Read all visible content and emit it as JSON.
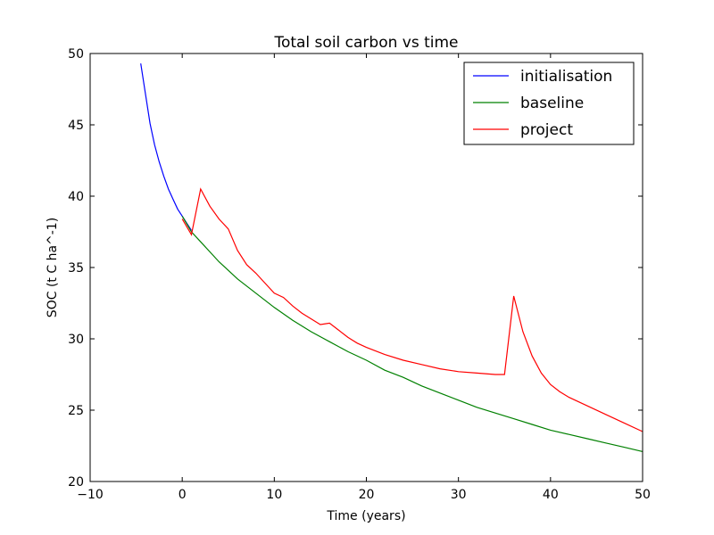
{
  "chart_data": {
    "type": "line",
    "title": "Total soil carbon vs time",
    "xlabel": "Time (years)",
    "ylabel": "SOC (t C ha^-1)",
    "xlim": [
      -10,
      50
    ],
    "ylim": [
      20,
      50
    ],
    "xticks": [
      -10,
      0,
      10,
      20,
      30,
      40,
      50
    ],
    "xtick_labels": [
      "−10",
      "0",
      "10",
      "20",
      "30",
      "40",
      "50"
    ],
    "yticks": [
      20,
      25,
      30,
      35,
      40,
      45,
      50
    ],
    "ytick_labels": [
      "20",
      "25",
      "30",
      "35",
      "40",
      "45",
      "50"
    ],
    "grid": false,
    "legend_position": "top-right",
    "series": [
      {
        "name": "initialisation",
        "color": "#0000ff",
        "x": [
          -4.5,
          -4,
          -3.5,
          -3,
          -2.5,
          -2,
          -1.5,
          -1,
          -0.5,
          0,
          0.5,
          1
        ],
        "y": [
          49.3,
          47.2,
          45.1,
          43.6,
          42.4,
          41.4,
          40.5,
          39.8,
          39.1,
          38.6,
          38.1,
          37.6
        ]
      },
      {
        "name": "baseline",
        "color": "#008000",
        "x": [
          0,
          1,
          2,
          3,
          4,
          5,
          6,
          7,
          8,
          9,
          10,
          12,
          14,
          16,
          18,
          20,
          22,
          24,
          26,
          28,
          30,
          32,
          34,
          36,
          38,
          40,
          42,
          44,
          46,
          48,
          50
        ],
        "y": [
          38.6,
          37.5,
          36.8,
          36.1,
          35.4,
          34.8,
          34.2,
          33.7,
          33.2,
          32.7,
          32.2,
          31.3,
          30.5,
          29.8,
          29.1,
          28.5,
          27.8,
          27.3,
          26.7,
          26.2,
          25.7,
          25.2,
          24.8,
          24.4,
          24.0,
          23.6,
          23.3,
          23.0,
          22.7,
          22.4,
          22.1
        ]
      },
      {
        "name": "project",
        "color": "#ff0000",
        "x": [
          0,
          1,
          2,
          3,
          4,
          5,
          6,
          7,
          8,
          9,
          10,
          11,
          12,
          13,
          14,
          15,
          16,
          17,
          18,
          19,
          20,
          22,
          24,
          26,
          28,
          30,
          32,
          34,
          35,
          36,
          37,
          38,
          39,
          40,
          41,
          42,
          44,
          46,
          48,
          50
        ],
        "y": [
          38.4,
          37.3,
          40.5,
          39.3,
          38.4,
          37.7,
          36.2,
          35.2,
          34.6,
          33.9,
          33.2,
          32.9,
          32.3,
          31.8,
          31.4,
          31.0,
          31.1,
          30.6,
          30.1,
          29.7,
          29.4,
          28.9,
          28.5,
          28.2,
          27.9,
          27.7,
          27.6,
          27.5,
          27.5,
          33.0,
          30.5,
          28.8,
          27.6,
          26.8,
          26.3,
          25.9,
          25.3,
          24.7,
          24.1,
          23.5
        ]
      }
    ]
  }
}
